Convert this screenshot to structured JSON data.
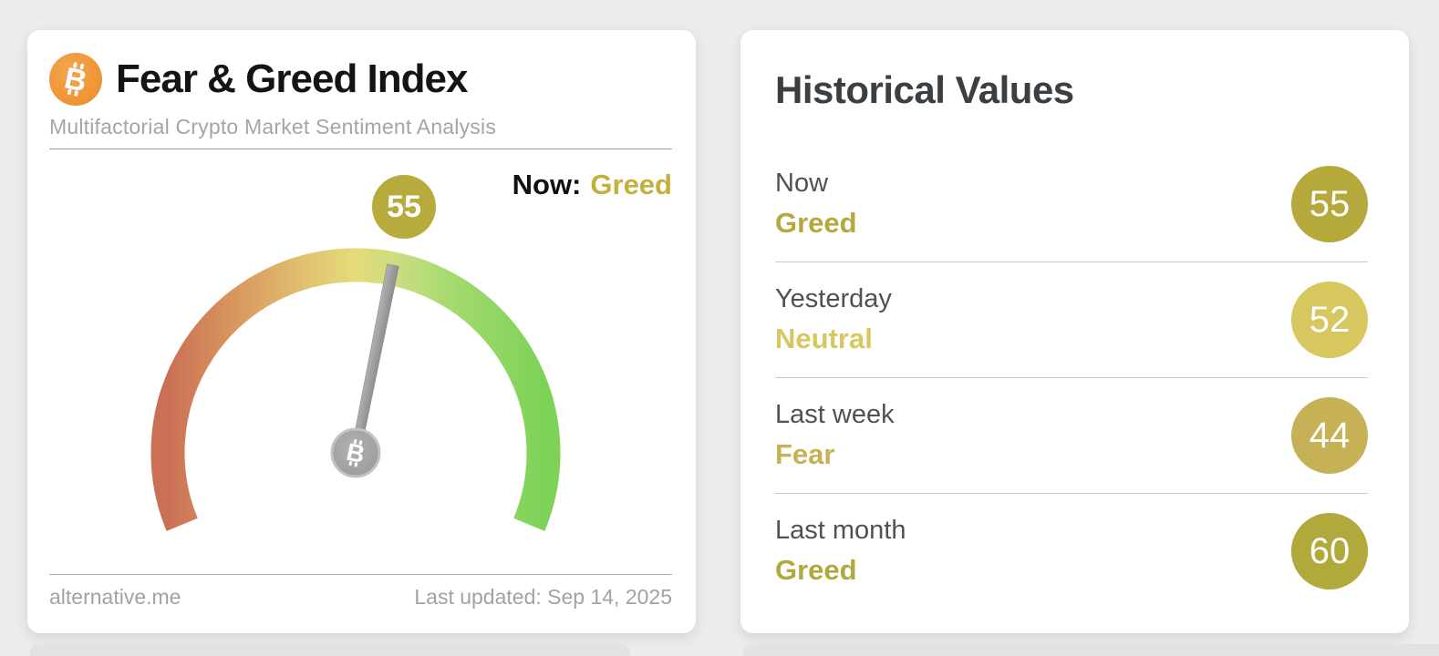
{
  "left_card": {
    "title": "Fear & Greed Index",
    "subtitle": "Multifactorial Crypto Market Sentiment Analysis",
    "value": "55",
    "value_bg": "#b8ab3d",
    "now_label": "Now:",
    "now_classification": "Greed",
    "now_classification_color": "#c2b23c",
    "source": "alternative.me",
    "last_updated": "Last updated: Sep 14, 2025",
    "icon": "bitcoin-icon",
    "icon_color": "#ef9434"
  },
  "right_card": {
    "title": "Historical Values",
    "rows": [
      {
        "label": "Now",
        "classification": "Greed",
        "value": "55",
        "color": "#b5a93c"
      },
      {
        "label": "Yesterday",
        "classification": "Neutral",
        "value": "52",
        "color": "#d6c75f"
      },
      {
        "label": "Last week",
        "classification": "Fear",
        "value": "44",
        "color": "#c7b156"
      },
      {
        "label": "Last month",
        "classification": "Greed",
        "value": "60",
        "color": "#b1a93c"
      }
    ]
  },
  "chart_data": {
    "type": "gauge",
    "title": "Fear & Greed Index",
    "value": 55,
    "min": 0,
    "max": 100,
    "sweep_deg": 225,
    "classification": "Greed",
    "needle_color": "#9c9c9c",
    "scale_gradient": [
      "#ca7055",
      "#d9975e",
      "#e2c472",
      "#e4dc7a",
      "#c8dd80",
      "#9fd96c",
      "#7ed257"
    ],
    "historical": [
      {
        "label": "Now",
        "value": 55,
        "classification": "Greed"
      },
      {
        "label": "Yesterday",
        "value": 52,
        "classification": "Neutral"
      },
      {
        "label": "Last week",
        "value": 44,
        "classification": "Fear"
      },
      {
        "label": "Last month",
        "value": 60,
        "classification": "Greed"
      }
    ],
    "last_updated": "Sep 14, 2025",
    "source": "alternative.me"
  }
}
